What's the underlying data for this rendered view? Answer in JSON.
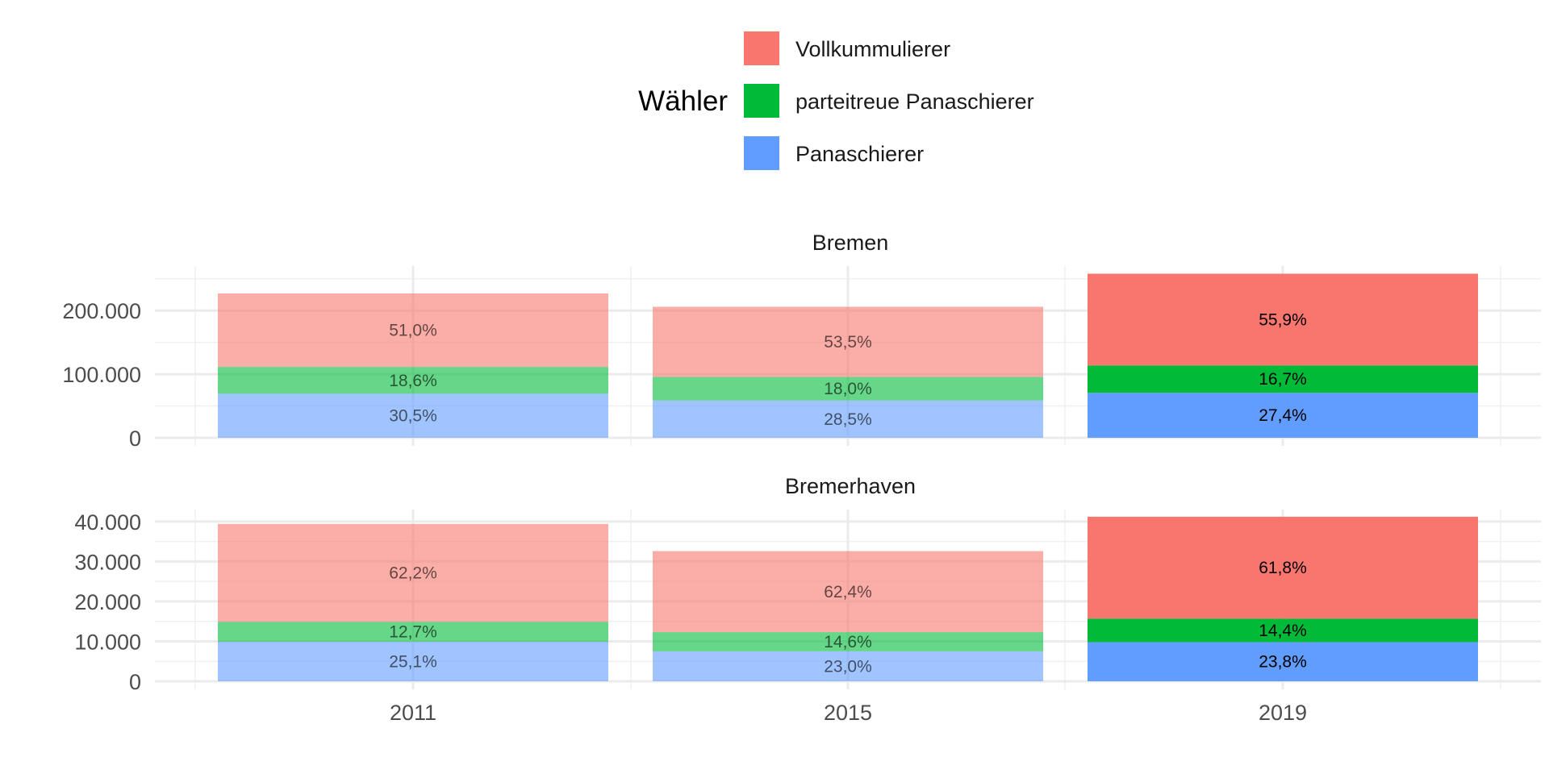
{
  "chart_data": {
    "type": "bar",
    "stacked": true,
    "legend": {
      "title": "Wähler",
      "placement": "top",
      "entries": [
        {
          "name": "Vollkummulierer",
          "color": "#F8766D"
        },
        {
          "name": "parteitreue Panaschierer",
          "color": "#00BA38"
        },
        {
          "name": "Panaschierer",
          "color": "#619CFF"
        }
      ]
    },
    "grid": true,
    "highlighted_category": "2019",
    "faded_opacity": 0.6,
    "categories": [
      "2011",
      "2015",
      "2019"
    ],
    "panels": [
      {
        "title": "Bremen",
        "ylim": [
          0,
          270000
        ],
        "yticks": [
          0,
          100000,
          200000
        ],
        "ytick_labels": [
          "0",
          "100.000",
          "200.000"
        ],
        "series": [
          {
            "name": "Panaschierer",
            "values": [
              69200,
              58700,
              70700
            ],
            "labels": [
              "30,5%",
              "28,5%",
              "27,4%"
            ]
          },
          {
            "name": "parteitreue Panaschierer",
            "values": [
              42200,
              37100,
              43100
            ],
            "labels": [
              "18,6%",
              "18,0%",
              "16,7%"
            ]
          },
          {
            "name": "Vollkummulierer",
            "values": [
              115600,
              110200,
              144200
            ],
            "labels": [
              "51,0%",
              "53,5%",
              "55,9%"
            ]
          }
        ]
      },
      {
        "title": "Bremerhaven",
        "ylim": [
          0,
          43000
        ],
        "yticks": [
          0,
          10000,
          20000,
          30000,
          40000
        ],
        "ytick_labels": [
          "0",
          "10.000",
          "20.000",
          "30.000",
          "40.000"
        ],
        "series": [
          {
            "name": "Panaschierer",
            "values": [
              9900,
              7500,
              9800
            ],
            "labels": [
              "25,1%",
              "23,0%",
              "23,8%"
            ]
          },
          {
            "name": "parteitreue Panaschierer",
            "values": [
              5000,
              4800,
              5900
            ],
            "labels": [
              "12,7%",
              "14,6%",
              "14,4%"
            ]
          },
          {
            "name": "Vollkummulierer",
            "values": [
              24500,
              20300,
              25500
            ],
            "labels": [
              "62,2%",
              "62,4%",
              "61,8%"
            ]
          }
        ]
      }
    ]
  }
}
